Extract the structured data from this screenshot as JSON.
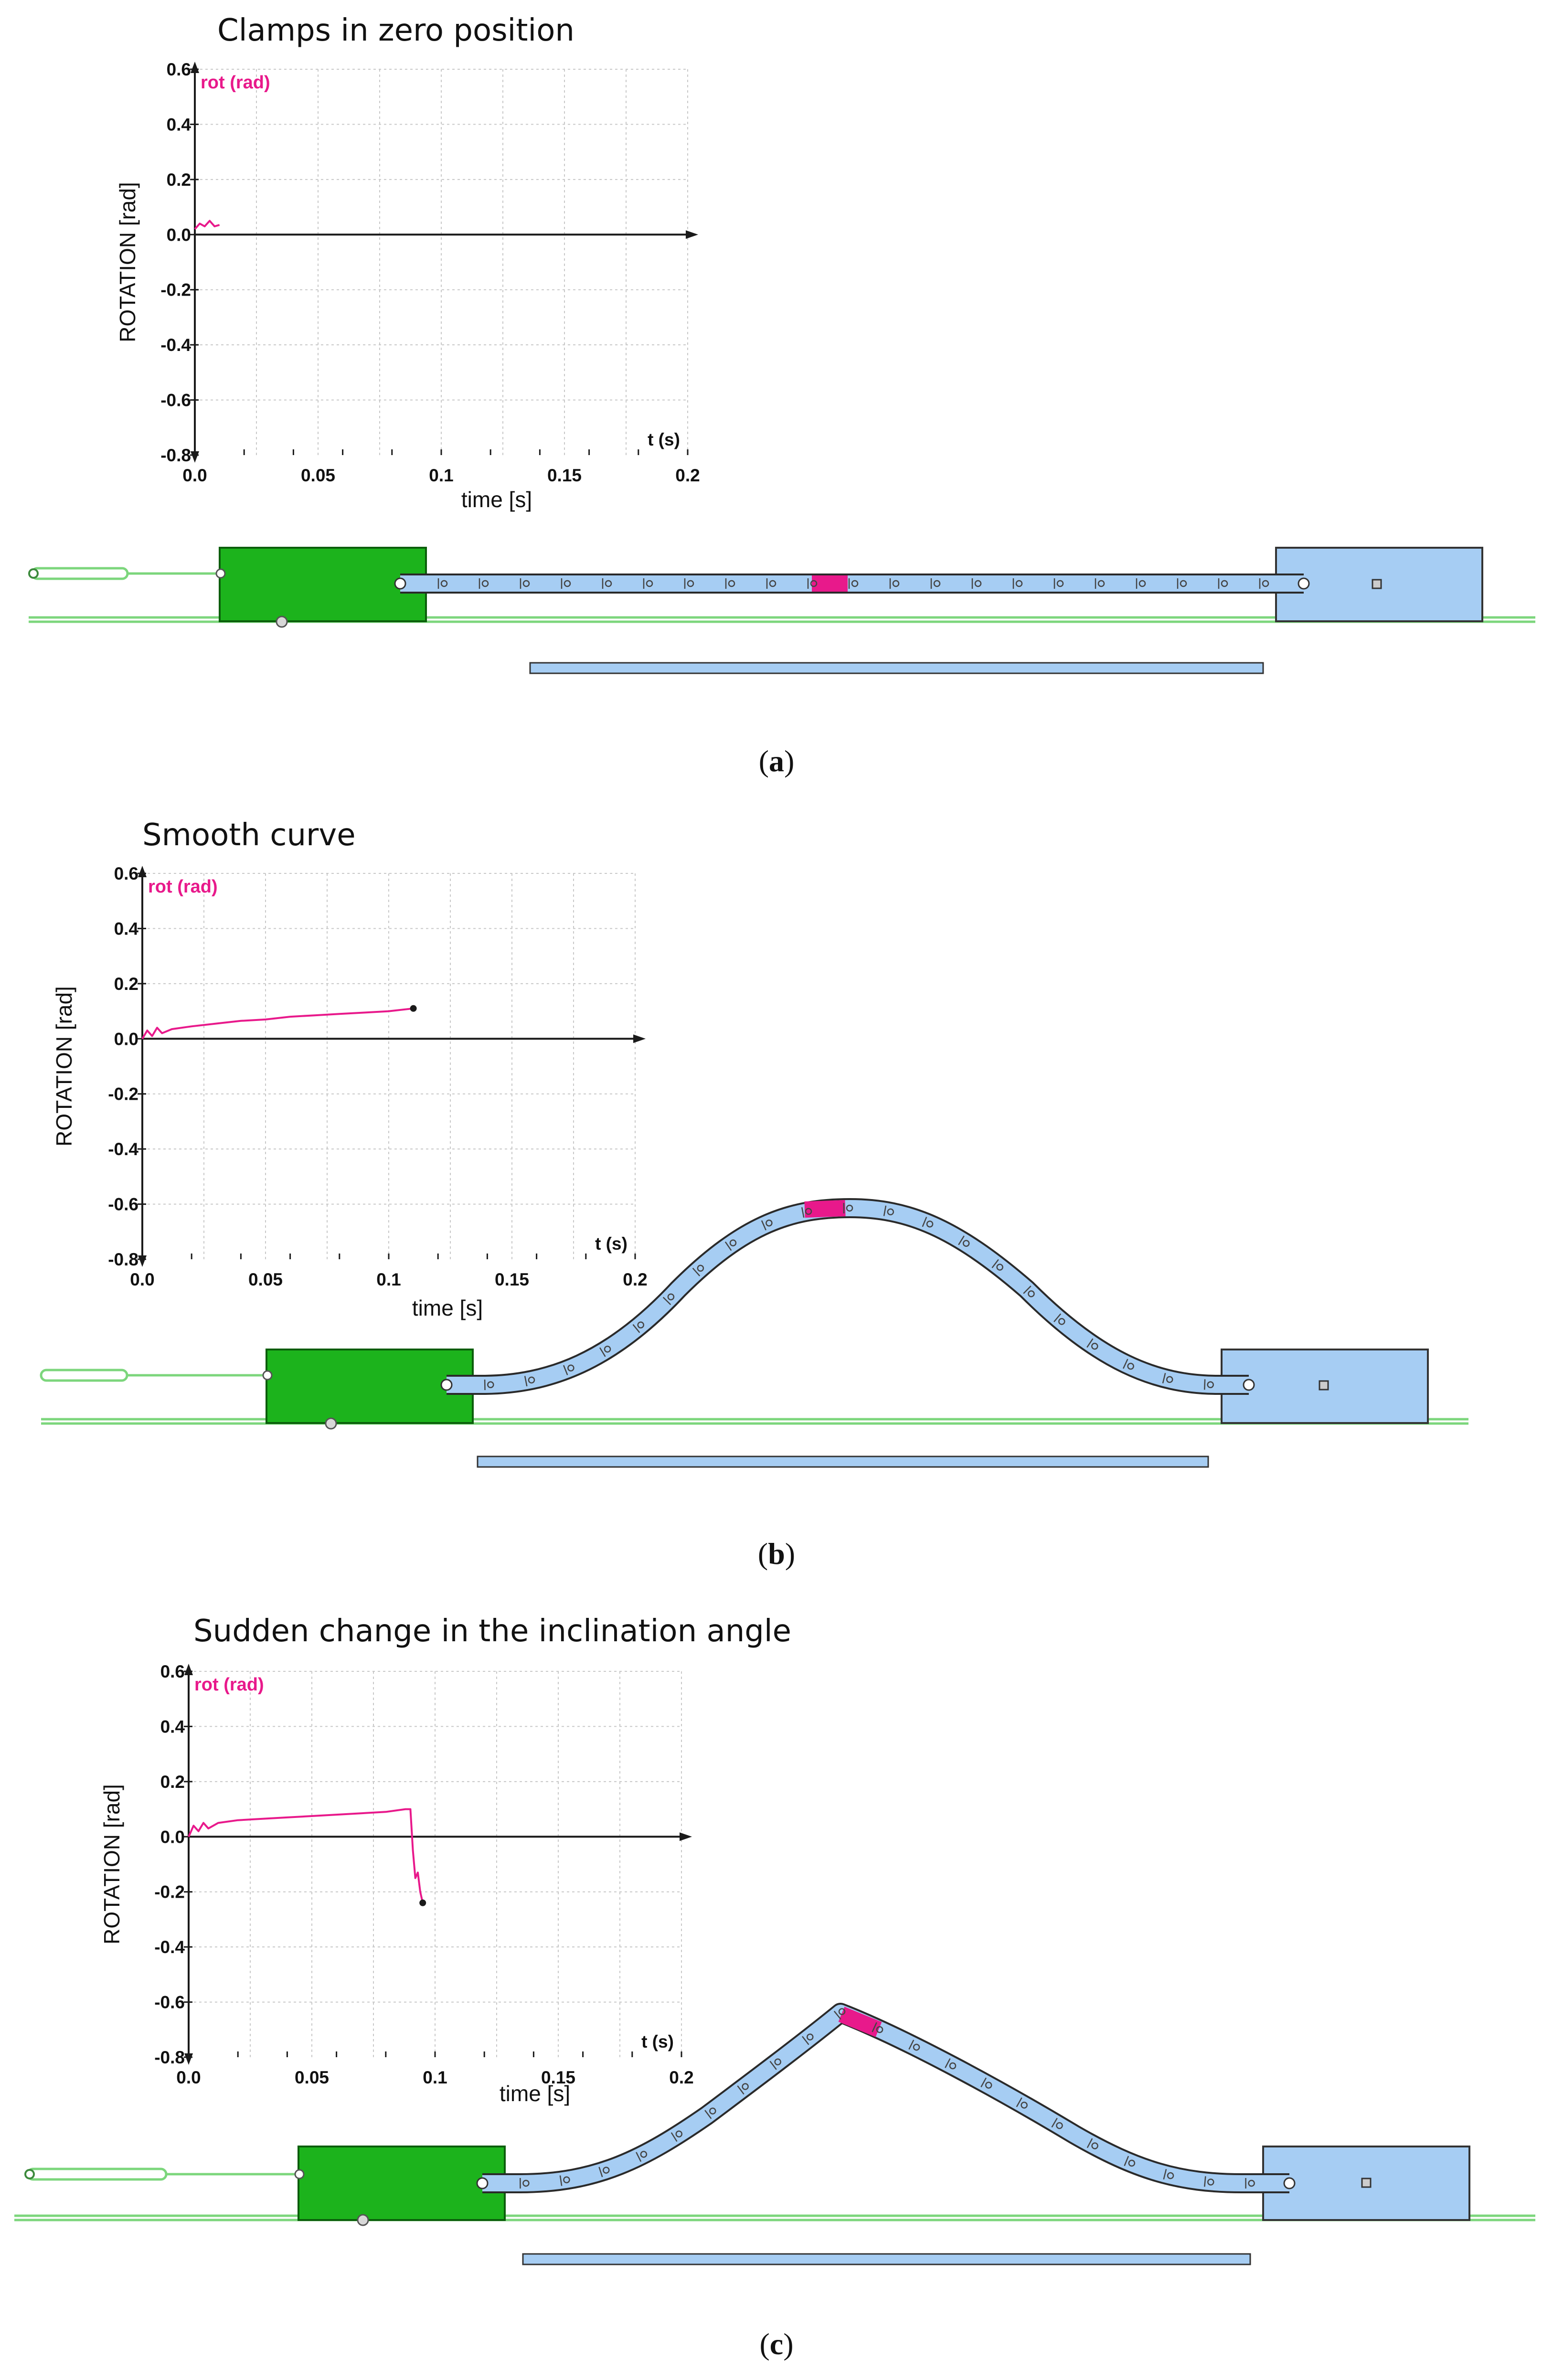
{
  "chart_data": [
    {
      "type": "line",
      "title": "Clamps in zero position",
      "ylabel": "ROTATION [rad]",
      "xlabel": "time [s]",
      "x_axis_end_label": "t (s)",
      "series_label": "rot (rad)",
      "caption_letter": "a",
      "xlim": [
        0.0,
        0.2
      ],
      "ylim": [
        -0.8,
        0.6
      ],
      "x_ticks": [
        "0.0",
        "0.05",
        "0.1",
        "0.15",
        "0.2"
      ],
      "y_ticks": [
        "0.6",
        "0.4",
        "0.2",
        "0.0",
        "-0.2",
        "-0.4",
        "-0.6",
        "-0.8"
      ],
      "grid": true,
      "series": [
        {
          "name": "rot (rad)",
          "color": "#e8198b",
          "x": [
            0.0,
            0.002,
            0.004,
            0.006,
            0.008,
            0.01
          ],
          "y": [
            0.02,
            0.04,
            0.03,
            0.05,
            0.03,
            0.035
          ]
        }
      ]
    },
    {
      "type": "line",
      "title": "Smooth curve",
      "ylabel": "ROTATION [rad]",
      "xlabel": "time [s]",
      "x_axis_end_label": "t (s)",
      "series_label": "rot (rad)",
      "caption_letter": "b",
      "xlim": [
        0.0,
        0.2
      ],
      "ylim": [
        -0.8,
        0.6
      ],
      "x_ticks": [
        "0.0",
        "0.05",
        "0.1",
        "0.15",
        "0.2"
      ],
      "y_ticks": [
        "0.6",
        "0.4",
        "0.2",
        "0.0",
        "-0.2",
        "-0.4",
        "-0.6",
        "-0.8"
      ],
      "grid": true,
      "series": [
        {
          "name": "rot (rad)",
          "color": "#e8198b",
          "x": [
            0.0,
            0.002,
            0.004,
            0.006,
            0.008,
            0.012,
            0.02,
            0.03,
            0.04,
            0.05,
            0.06,
            0.07,
            0.08,
            0.09,
            0.1,
            0.11
          ],
          "y": [
            0.0,
            0.03,
            0.01,
            0.04,
            0.02,
            0.035,
            0.045,
            0.055,
            0.065,
            0.07,
            0.08,
            0.085,
            0.09,
            0.095,
            0.1,
            0.11
          ]
        }
      ]
    },
    {
      "type": "line",
      "title": "Sudden change in the inclination angle",
      "ylabel": "ROTATION [rad]",
      "xlabel": "time [s]",
      "x_axis_end_label": "t (s)",
      "series_label": "rot (rad)",
      "caption_letter": "c",
      "xlim": [
        0.0,
        0.2
      ],
      "ylim": [
        -0.8,
        0.6
      ],
      "x_ticks": [
        "0.0",
        "0.05",
        "0.1",
        "0.15",
        "0.2"
      ],
      "y_ticks": [
        "0.6",
        "0.4",
        "0.2",
        "0.0",
        "-0.2",
        "-0.4",
        "-0.6",
        "-0.8"
      ],
      "grid": true,
      "series": [
        {
          "name": "rot (rad)",
          "color": "#e8198b",
          "x": [
            0.0,
            0.002,
            0.004,
            0.006,
            0.008,
            0.012,
            0.02,
            0.03,
            0.04,
            0.05,
            0.06,
            0.07,
            0.08,
            0.088,
            0.09,
            0.091,
            0.092,
            0.093,
            0.094,
            0.095
          ],
          "y": [
            0.0,
            0.04,
            0.02,
            0.05,
            0.03,
            0.05,
            0.06,
            0.065,
            0.07,
            0.075,
            0.08,
            0.085,
            0.09,
            0.1,
            0.1,
            -0.05,
            -0.15,
            -0.13,
            -0.2,
            -0.24
          ]
        }
      ]
    }
  ],
  "colors": {
    "series": "#e8198b",
    "clamp_left": "#1cb31c",
    "clamp_right": "#a6cdf3",
    "bar": "#a6cdf3",
    "bar_highlight": "#e8198b",
    "rail": "#7cd67c",
    "grid": "#c8c8c8"
  }
}
